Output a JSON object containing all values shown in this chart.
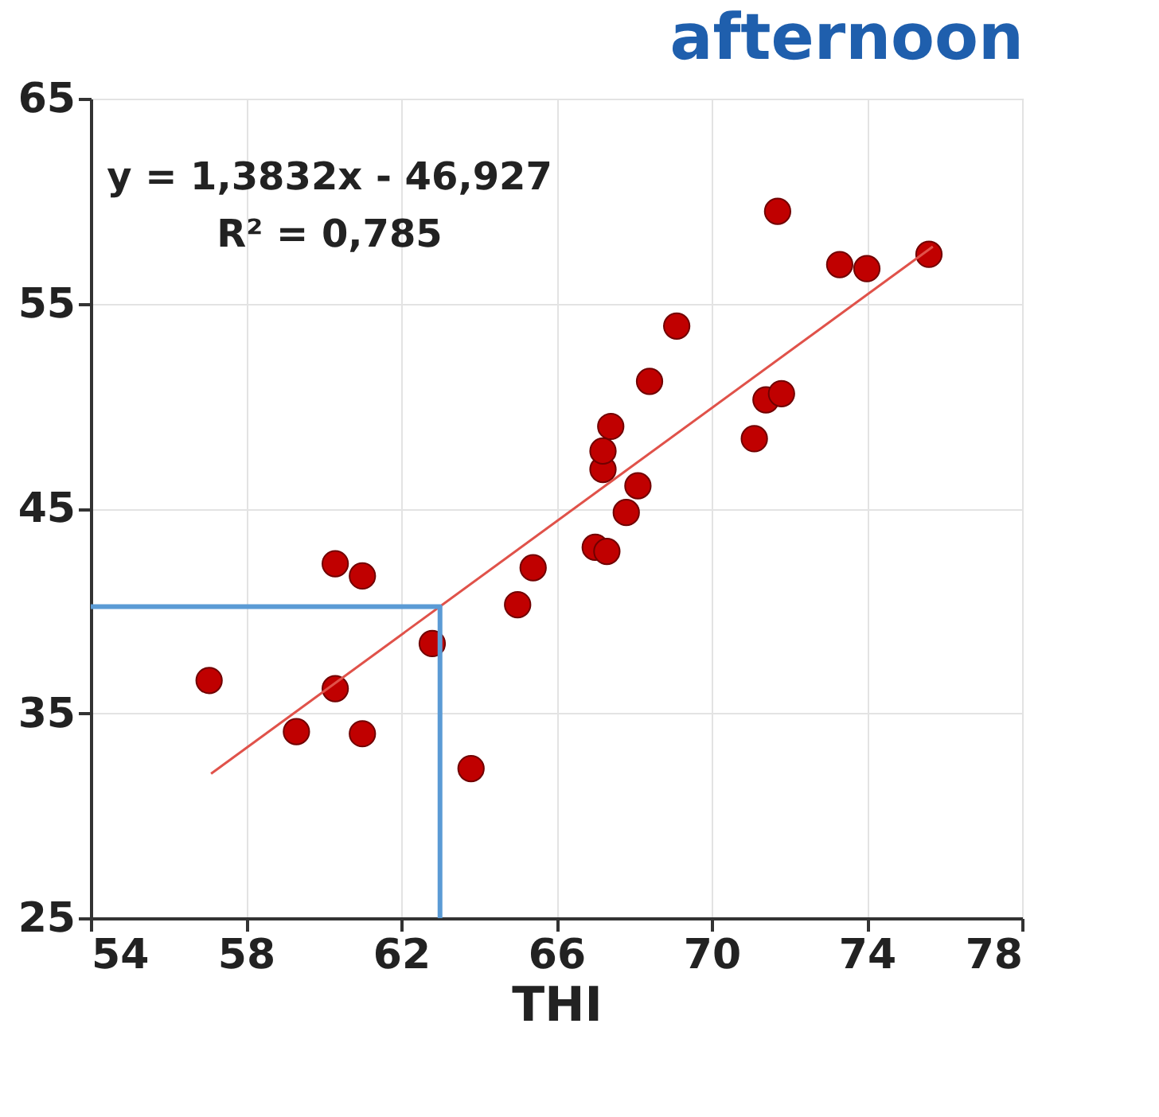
{
  "chart_data": {
    "type": "scatter",
    "title": "afternoon",
    "xlabel": "THI",
    "xlim": [
      54,
      78
    ],
    "xticks": [
      54,
      58,
      62,
      66,
      70,
      74,
      78
    ],
    "ylim": [
      25,
      65
    ],
    "yticks": [
      25,
      35,
      45,
      55,
      65
    ],
    "grid": true,
    "marker": "circle",
    "annotations": [
      "y = 1,3832x - 46,927",
      "R² = 0,785"
    ],
    "series": [
      {
        "color": "#c00000",
        "x": [
          57.05,
          60.3,
          59.3,
          61.0,
          60.3,
          61.0,
          62.8,
          63.8,
          65.0,
          65.4,
          67.0,
          67.3,
          67.8,
          68.1,
          67.2,
          67.2,
          67.4,
          68.4,
          69.1,
          71.1,
          71.4,
          71.8,
          71.7,
          73.3,
          74.0,
          75.6
        ],
        "values": [
          36.6,
          36.2,
          34.1,
          34.0,
          42.3,
          41.7,
          38.4,
          32.3,
          40.3,
          42.1,
          43.1,
          42.9,
          44.8,
          46.1,
          46.9,
          47.8,
          49.0,
          51.2,
          53.9,
          48.4,
          50.3,
          50.6,
          59.5,
          56.9,
          56.7,
          57.4
        ]
      },
      {
        "type": "line",
        "marker": "none",
        "line_style": "solid",
        "color": "#e0524a",
        "x": [
          57.1,
          75.7
        ],
        "values": [
          32.05,
          57.78
        ]
      },
      {
        "type": "line",
        "marker": "none",
        "line_style": "solid",
        "color": "#5b9bd5",
        "x": [
          54,
          63.0,
          63.0
        ],
        "values": [
          40.2,
          40.2,
          25
        ]
      }
    ]
  }
}
